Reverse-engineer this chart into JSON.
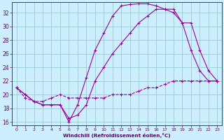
{
  "bg_color": "#cceeff",
  "line_color": "#990099",
  "grid_color": "#99cccc",
  "xlabel": "Windchill (Refroidissement éolien,°C)",
  "xlabel_color": "#660066",
  "tick_color": "#660066",
  "xlim": [
    -0.5,
    23.5
  ],
  "ylim": [
    15.5,
    33.5
  ],
  "yticks": [
    16,
    18,
    20,
    22,
    24,
    26,
    28,
    30,
    32
  ],
  "xticks": [
    0,
    1,
    2,
    3,
    4,
    5,
    6,
    7,
    8,
    9,
    10,
    11,
    12,
    13,
    14,
    15,
    16,
    17,
    18,
    19,
    20,
    21,
    22,
    23
  ],
  "line1_x": [
    0,
    1,
    2,
    3,
    4,
    5,
    6,
    7,
    8,
    9,
    10,
    11,
    12,
    13,
    14,
    15,
    16,
    17,
    18,
    19,
    20,
    21,
    22,
    23
  ],
  "line1_y": [
    21.0,
    20.0,
    19.0,
    18.5,
    18.5,
    18.5,
    16.0,
    18.5,
    22.5,
    26.5,
    29.0,
    31.5,
    33.0,
    33.2,
    33.3,
    33.3,
    33.0,
    32.5,
    32.0,
    30.5,
    26.5,
    23.5,
    22.0,
    22.0
  ],
  "line2_x": [
    0,
    1,
    2,
    3,
    4,
    5,
    6,
    7,
    8,
    9,
    10,
    11,
    12,
    13,
    14,
    15,
    16,
    17,
    18,
    19,
    20,
    21,
    22,
    23
  ],
  "line2_y": [
    21.0,
    20.0,
    19.0,
    18.5,
    18.5,
    18.5,
    16.5,
    17.0,
    18.5,
    22.0,
    24.0,
    26.0,
    27.5,
    29.0,
    30.5,
    31.5,
    32.5,
    32.5,
    32.5,
    30.5,
    30.5,
    26.5,
    23.5,
    22.0
  ],
  "line3_x": [
    0,
    1,
    2,
    3,
    4,
    5,
    6,
    7,
    8,
    9,
    10,
    11,
    12,
    13,
    14,
    15,
    16,
    17,
    18,
    19,
    20,
    21,
    22,
    23
  ],
  "line3_y": [
    21.0,
    19.5,
    19.0,
    19.0,
    19.5,
    20.0,
    19.5,
    19.5,
    19.5,
    19.5,
    19.5,
    20.0,
    20.0,
    20.0,
    20.5,
    21.0,
    21.0,
    21.5,
    22.0,
    22.0,
    22.0,
    22.0,
    22.0,
    22.0
  ]
}
